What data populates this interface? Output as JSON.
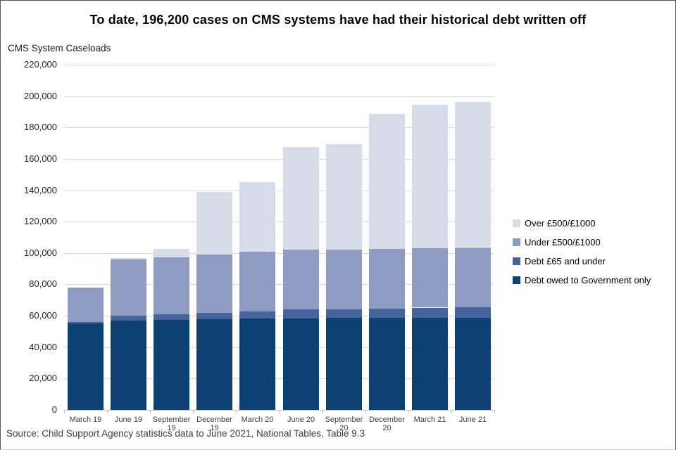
{
  "title": "To date, 196,200 cases on CMS systems have had their historical debt written off",
  "axis_title": "CMS System Caseloads",
  "source": "Source: Child Support Agency statistics data to June 2021, National Tables, Table 9.3",
  "colors": {
    "navy": "#0e4173",
    "slate": "#46639c",
    "medium": "#8e9cc2",
    "light": "#d8dce8",
    "gridline": "#d9d9d9",
    "axis_text": "#404040"
  },
  "legend": {
    "items": [
      {
        "label": "Over £500/£1000",
        "color": "#d8dce8"
      },
      {
        "label": "Under £500/£1000",
        "color": "#8e9cc2"
      },
      {
        "label": "Debt £65 and under",
        "color": "#46639c"
      },
      {
        "label": "Debt owed to Government only",
        "color": "#0e4173"
      }
    ]
  },
  "chart_data": {
    "type": "bar",
    "stacked": true,
    "title": "To date, 196,200 cases on CMS systems have had their historical debt written off",
    "xlabel": "",
    "ylabel": "CMS System Caseloads",
    "ylim": [
      0,
      220000
    ],
    "ytick_interval": 20000,
    "grid": true,
    "legend_position": "right",
    "categories": [
      "March 19",
      "June 19",
      "September 19",
      "December 19",
      "March 20",
      "June 20",
      "September 20",
      "December 20",
      "March 21",
      "June 21"
    ],
    "categories_display": [
      [
        "March 19"
      ],
      [
        "June 19"
      ],
      [
        "September",
        "19"
      ],
      [
        "December",
        "19"
      ],
      [
        "March 20"
      ],
      [
        "June 20"
      ],
      [
        "September",
        "20"
      ],
      [
        "December 20"
      ],
      [
        "March 21"
      ],
      [
        "June 21"
      ]
    ],
    "series": [
      {
        "name": "Debt owed to Government only",
        "color": "#0e4173",
        "values": [
          55000,
          56800,
          57500,
          58000,
          58300,
          58400,
          58500,
          58600,
          58700,
          58800
        ]
      },
      {
        "name": "Debt £65 and under",
        "color": "#46639c",
        "values": [
          1200,
          3200,
          3500,
          3800,
          4300,
          5500,
          5500,
          6100,
          6500,
          6700
        ]
      },
      {
        "name": "Under £500/£1000",
        "color": "#8e9cc2",
        "values": [
          21800,
          35900,
          36400,
          37400,
          38300,
          38100,
          38200,
          37800,
          37900,
          38200
        ]
      },
      {
        "name": "Over £500/£1000",
        "color": "#d8dce8",
        "values": [
          0,
          900,
          5200,
          39800,
          44400,
          65600,
          67000,
          86100,
          91200,
          92500
        ]
      }
    ],
    "totals": [
      78000,
      96800,
      102600,
      139000,
      145300,
      167600,
      169200,
      188600,
      194300,
      196200
    ]
  }
}
